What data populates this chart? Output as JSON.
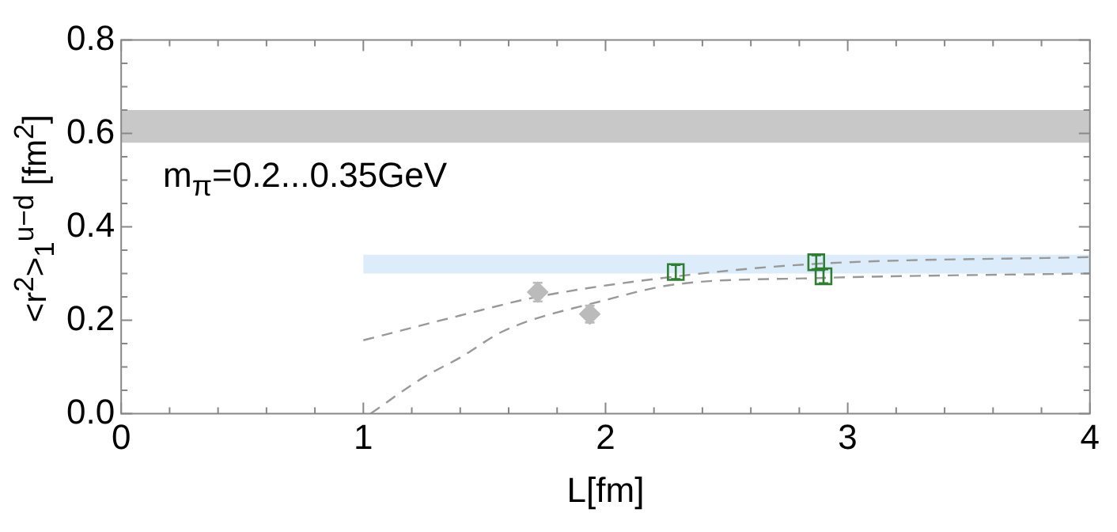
{
  "chart_data": {
    "type": "scatter",
    "xlabel": "L[fm]",
    "ylabel": "<r$^{2}$>$_{1}$$^{u−d}$ [fm$^{2}$]",
    "annotations": [
      "m$_{π}$=0.2...0.35GeV"
    ],
    "xlim": [
      0,
      4
    ],
    "ylim": [
      0,
      0.8
    ],
    "xticks": [
      0,
      {
        "value": 0.2,
        "label": null
      },
      {
        "value": 0.4,
        "label": null
      },
      {
        "value": 0.6,
        "label": null
      },
      {
        "value": 0.8,
        "label": null
      },
      1,
      {
        "value": 1.2,
        "label": null
      },
      {
        "value": 1.4,
        "label": null
      },
      {
        "value": 1.6,
        "label": null
      },
      {
        "value": 1.8,
        "label": null
      },
      2,
      {
        "value": 2.2,
        "label": null
      },
      {
        "value": 2.4,
        "label": null
      },
      {
        "value": 2.6,
        "label": null
      },
      {
        "value": 2.8,
        "label": null
      },
      3,
      {
        "value": 3.2,
        "label": null
      },
      {
        "value": 3.4,
        "label": null
      },
      {
        "value": 3.6,
        "label": null
      },
      {
        "value": 3.8,
        "label": null
      },
      4
    ],
    "yticks": [
      {
        "value": 0,
        "label": "0.0"
      },
      {
        "value": 0.05,
        "label": null
      },
      {
        "value": 0.1,
        "label": null
      },
      {
        "value": 0.15,
        "label": null
      },
      {
        "value": 0.2,
        "label": "0.2"
      },
      {
        "value": 0.25,
        "label": null
      },
      {
        "value": 0.3,
        "label": null
      },
      {
        "value": 0.35,
        "label": null
      },
      {
        "value": 0.4,
        "label": "0.4"
      },
      {
        "value": 0.45,
        "label": null
      },
      {
        "value": 0.5,
        "label": null
      },
      {
        "value": 0.55,
        "label": null
      },
      {
        "value": 0.6,
        "label": "0.6"
      },
      {
        "value": 0.65,
        "label": null
      },
      {
        "value": 0.7,
        "label": null
      },
      {
        "value": 0.75,
        "label": null
      },
      {
        "value": 0.8,
        "label": "0.8"
      }
    ],
    "bands": [
      {
        "axis": "y",
        "from": 0.58,
        "to": 0.65,
        "color": "#c8c8c8"
      }
    ],
    "series": [
      {
        "type": "area",
        "color": "#dcecfb",
        "x": [
          1,
          4
        ],
        "values": [
          null,
          null
        ],
        "lower": [
          0.3,
          0.3
        ],
        "upper": [
          0.34,
          0.34
        ]
      },
      {
        "type": "line",
        "color": "#999999",
        "line_style": "dashed",
        "marker": "none",
        "x": [
          1,
          1.4,
          1.72,
          2.28,
          2.85,
          4
        ],
        "values": [
          0.157,
          0.21,
          0.25,
          0.293,
          0.32,
          0.335
        ]
      },
      {
        "type": "line",
        "color": "#999999",
        "line_style": "dashed",
        "marker": "none",
        "x": [
          1.03,
          1.25,
          1.4,
          1.58,
          2,
          2.28,
          2.87,
          4
        ],
        "values": [
          0,
          0.078,
          0.12,
          0.177,
          0.243,
          0.276,
          0.29,
          0.3
        ]
      },
      {
        "color": "#bbbbbb",
        "marker": "diamond",
        "x": [
          1.72,
          1.935
        ],
        "values": [
          0.26,
          0.213
        ],
        "errors": [
          0.02,
          0.018
        ]
      },
      {
        "color": "#2e7d32",
        "marker": "square",
        "x": [
          2.29,
          2.87,
          2.9
        ],
        "values": [
          0.303,
          0.324,
          0.294
        ],
        "errors": [
          0.015,
          0.015,
          0.015
        ]
      }
    ],
    "grid": false,
    "legend": false
  }
}
